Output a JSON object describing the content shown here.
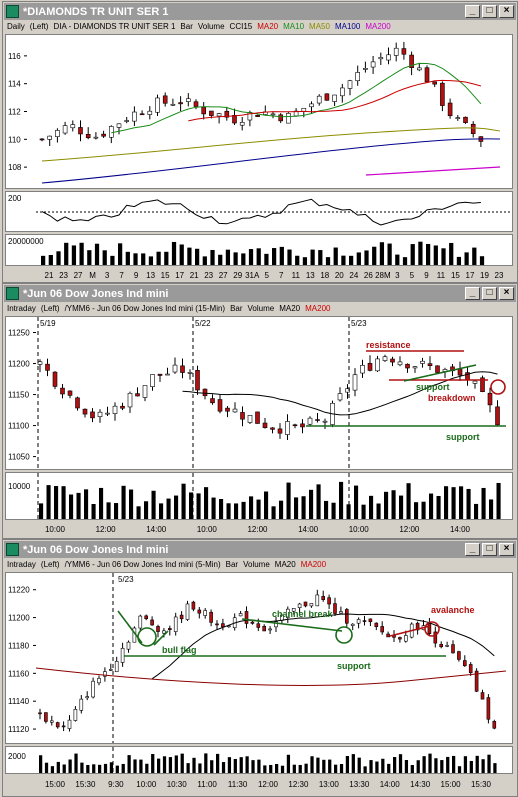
{
  "windows": [
    {
      "id": "w1",
      "title": "*DIAMONDS TR UNIT SER 1",
      "info": [
        {
          "text": "Daily",
          "color": "#000000"
        },
        {
          "text": "(Left)",
          "color": "#000000"
        },
        {
          "text": "DIA - DIAMONDS TR UNIT SER 1",
          "color": "#000000"
        },
        {
          "text": "Bar",
          "color": "#000000"
        },
        {
          "text": "Volume",
          "color": "#000000"
        },
        {
          "text": "CCI15",
          "color": "#000000"
        },
        {
          "text": "MA20",
          "color": "#cc0000"
        },
        {
          "text": "MA10",
          "color": "#1a8c1a"
        },
        {
          "text": "MA50",
          "color": "#8c8c00"
        },
        {
          "text": "MA100",
          "color": "#00008c"
        },
        {
          "text": "MA200",
          "color": "#cc00cc"
        }
      ],
      "price_ticks": [
        "116",
        "114",
        "112",
        "110",
        "108"
      ],
      "cci_ticks": [
        "200"
      ],
      "volume_ticks": [
        "20000000"
      ],
      "date_ticks": [
        "21",
        "23",
        "27",
        "M",
        "3",
        "7",
        "9",
        "13",
        "15",
        "17",
        "21",
        "23",
        "27",
        "29",
        "31A",
        "5",
        "7",
        "11",
        "13",
        "18",
        "20",
        "24",
        "26",
        "28M",
        "3",
        "5",
        "9",
        "11",
        "15",
        "17",
        "19",
        "23"
      ]
    },
    {
      "id": "w2",
      "title": "*Jun 06  Dow Jones Ind mini",
      "info": [
        {
          "text": "Intraday",
          "color": "#000000"
        },
        {
          "text": "(Left)",
          "color": "#000000"
        },
        {
          "text": "/YMM6 - Jun 06  Dow Jones Ind mini  (15-Min)",
          "color": "#000000"
        },
        {
          "text": "Bar",
          "color": "#000000"
        },
        {
          "text": "Volume",
          "color": "#000000"
        },
        {
          "text": "MA20",
          "color": "#000000"
        },
        {
          "text": "MA200",
          "color": "#cc0000"
        }
      ],
      "date_markers": [
        "5/19",
        "5/22",
        "5/23"
      ],
      "price_ticks": [
        "11250",
        "11200",
        "11150",
        "11100",
        "11050"
      ],
      "volume_ticks": [
        "10000"
      ],
      "time_ticks": [
        "10:00",
        "12:00",
        "14:00",
        "10:00",
        "12:00",
        "14:00",
        "10:00",
        "12:00",
        "14:00"
      ],
      "annotations": {
        "resistance": "resistance",
        "support_upper": "support",
        "breakdown": "breakdown",
        "support_lower": "support"
      }
    },
    {
      "id": "w3",
      "title": "*Jun 06  Dow Jones Ind mini",
      "info": [
        {
          "text": "Intraday",
          "color": "#000000"
        },
        {
          "text": "(Left)",
          "color": "#000000"
        },
        {
          "text": "/YMM6 - Jun 06  Dow Jones Ind mini  (5-Min)",
          "color": "#000000"
        },
        {
          "text": "Bar",
          "color": "#000000"
        },
        {
          "text": "Volume",
          "color": "#000000"
        },
        {
          "text": "MA20",
          "color": "#000000"
        },
        {
          "text": "MA200",
          "color": "#cc0000"
        }
      ],
      "date_markers": [
        "5/23"
      ],
      "price_ticks": [
        "11220",
        "11200",
        "11180",
        "11160",
        "11140",
        "11120"
      ],
      "volume_ticks": [
        "2000"
      ],
      "time_ticks": [
        "15:00",
        "15:30",
        "9:30",
        "10:00",
        "10:30",
        "11:00",
        "11:30",
        "12:00",
        "12:30",
        "13:00",
        "13:30",
        "14:00",
        "14:30",
        "15:00",
        "15:30"
      ],
      "annotations": {
        "bull_flag": "bull flag",
        "channel_break": "channel break",
        "support": "support",
        "avalanche": "avalanche"
      }
    }
  ],
  "window_buttons": {
    "minimize": "_",
    "maximize": "□",
    "close": "×"
  }
}
